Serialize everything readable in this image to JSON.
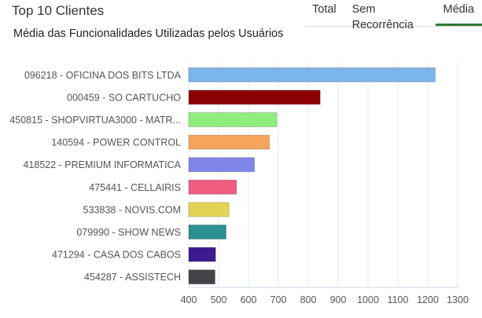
{
  "header": {
    "title": "Top 10 Clientes",
    "subtitle": "Média das Funcionalidades Utilizadas pelos Usuários"
  },
  "tabs": [
    {
      "label": "Total",
      "active": false
    },
    {
      "label": "Sem Recorrência",
      "active": false
    },
    {
      "label": "Média",
      "active": true
    }
  ],
  "colors": {
    "tab_active_underline": "#2e7d32",
    "grid": "#e8e8e8"
  },
  "chart_data": {
    "type": "bar",
    "orientation": "horizontal",
    "categories": [
      "096218 - OFICINA DOS BITS LTDA",
      "000459 - SO CARTUCHO",
      "450815 - SHOPVIRTUA3000 - MATR...",
      "140594 - POWER CONTROL",
      "418522 - PREMIUM INFORMATICA",
      "475441 - CELLAIRIS",
      "533838 - NOVIS.COM",
      "079990 - SHOW NEWS",
      "471294 - CASA DOS CABOS",
      "454287 - ASSISTECH"
    ],
    "values": [
      1225,
      840,
      695,
      670,
      620,
      560,
      535,
      525,
      490,
      488
    ],
    "colors": [
      "#7cb5ec",
      "#8b0000",
      "#90ed7d",
      "#f7a35c",
      "#8085e9",
      "#f15c80",
      "#e4d354",
      "#2b908f",
      "#3c1a8f",
      "#434348"
    ],
    "xlim": [
      400,
      1300
    ],
    "xticks": [
      400,
      500,
      600,
      700,
      800,
      900,
      1000,
      1100,
      1200,
      1300
    ],
    "grid": true
  }
}
